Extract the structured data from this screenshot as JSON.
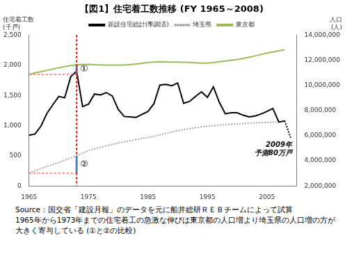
{
  "chart_data": {
    "type": "line",
    "title": "【図1】住宅着工数推移 (FY 1965～2008)",
    "y_label": [
      "住宅着工数",
      "(千戸)"
    ],
    "y2_label": [
      "人口",
      "(人)"
    ],
    "x": [
      1965,
      1966,
      1967,
      1968,
      1969,
      1970,
      1971,
      1972,
      1973,
      1974,
      1975,
      1976,
      1977,
      1978,
      1979,
      1980,
      1981,
      1982,
      1983,
      1984,
      1985,
      1986,
      1987,
      1988,
      1989,
      1990,
      1991,
      1992,
      1993,
      1994,
      1995,
      1996,
      1997,
      1998,
      1999,
      2000,
      2001,
      2002,
      2003,
      2004,
      2005,
      2006,
      2007,
      2008
    ],
    "xlim": [
      1965,
      2010
    ],
    "xticks": [
      1965,
      1975,
      1985,
      1995,
      2005
    ],
    "ylim": [
      0,
      2500
    ],
    "yticks": [
      0,
      500,
      {
        "value": 1000,
        "label": "1,000"
      },
      {
        "value": 1500,
        "label": "1,500"
      },
      {
        "value": 2000,
        "label": "2,000"
      },
      {
        "value": 2500,
        "label": "2,500"
      }
    ],
    "y2lim": [
      2000000,
      14000000
    ],
    "y2ticks": [
      {
        "value": 2000000,
        "label": "2,000,000"
      },
      {
        "value": 4000000,
        "label": "4,000,000"
      },
      {
        "value": 6000000,
        "label": "6,000,000"
      },
      {
        "value": 8000000,
        "label": "8,000,000"
      },
      {
        "value": 10000000,
        "label": "10,000,000"
      },
      {
        "value": 12000000,
        "label": "12,000,000"
      },
      {
        "value": 14000000,
        "label": "14,000,000"
      }
    ],
    "grid": false,
    "legend": "top",
    "series": [
      {
        "name": "新設住宅総計(季調済)",
        "color": "#000000",
        "line_style": "solid",
        "values": [
          843,
          860,
          991,
          1202,
          1347,
          1484,
          1464,
          1807,
          1905,
          1316,
          1356,
          1524,
          1508,
          1549,
          1493,
          1269,
          1152,
          1146,
          1137,
          1187,
          1236,
          1365,
          1674,
          1685,
          1663,
          1707,
          1370,
          1403,
          1486,
          1561,
          1470,
          1643,
          1387,
          1198,
          1215,
          1213,
          1173,
          1146,
          1160,
          1193,
          1236,
          1285,
          1060,
          1080
        ]
      },
      {
        "name": "埼玉県",
        "color": "#a6a6a6",
        "line_style": "dotted",
        "axis": "y2",
        "values": [
          3015000,
          3200000,
          3380000,
          3560000,
          3720000,
          3866000,
          4050000,
          4230000,
          4400000,
          4600000,
          4821000,
          4950000,
          5080000,
          5200000,
          5310000,
          5420000,
          5510000,
          5600000,
          5690000,
          5780000,
          5864000,
          5960000,
          6070000,
          6180000,
          6300000,
          6405000,
          6490000,
          6570000,
          6640000,
          6700000,
          6759000,
          6800000,
          6840000,
          6880000,
          6910000,
          6938000,
          6970000,
          7000000,
          7020000,
          7040000,
          7054000,
          7070000,
          7090000,
          7110000
        ]
      },
      {
        "name": "東京都",
        "color": "#9bbb59",
        "line_style": "solid",
        "axis": "y2",
        "values": [
          10869000,
          11000000,
          11100000,
          11200000,
          11300000,
          11408000,
          11500000,
          11580000,
          11650000,
          11670000,
          11674000,
          11650000,
          11640000,
          11630000,
          11620000,
          11618000,
          11630000,
          11660000,
          11700000,
          11760000,
          11829000,
          11860000,
          11880000,
          11870000,
          11860000,
          11856000,
          11840000,
          11830000,
          11800000,
          11780000,
          11774000,
          11820000,
          11880000,
          11940000,
          12000000,
          12064000,
          12150000,
          12250000,
          12350000,
          12460000,
          12577000,
          12660000,
          12760000,
          12840000
        ]
      }
    ],
    "annotations": [
      {
        "text": "①",
        "series": "東京都",
        "x_from": 1965,
        "x": 1973
      },
      {
        "text": "②",
        "series": "埼玉県",
        "x_from": 1965,
        "x": 1973
      },
      {
        "text": [
          "2009年",
          "予測80万戸"
        ],
        "x": 2009,
        "y": 800,
        "line_style": "dotted"
      }
    ],
    "footnotes": [
      "Source：国交省「建設月報」のデータを元に船井総研ＲＥＢチームによって試算",
      "1965年から1973年までの住宅着工の急激な伸びは東京都の人口増より埼玉県の人口増の方が",
      "大きく寄与している (①と②の比較)"
    ]
  }
}
